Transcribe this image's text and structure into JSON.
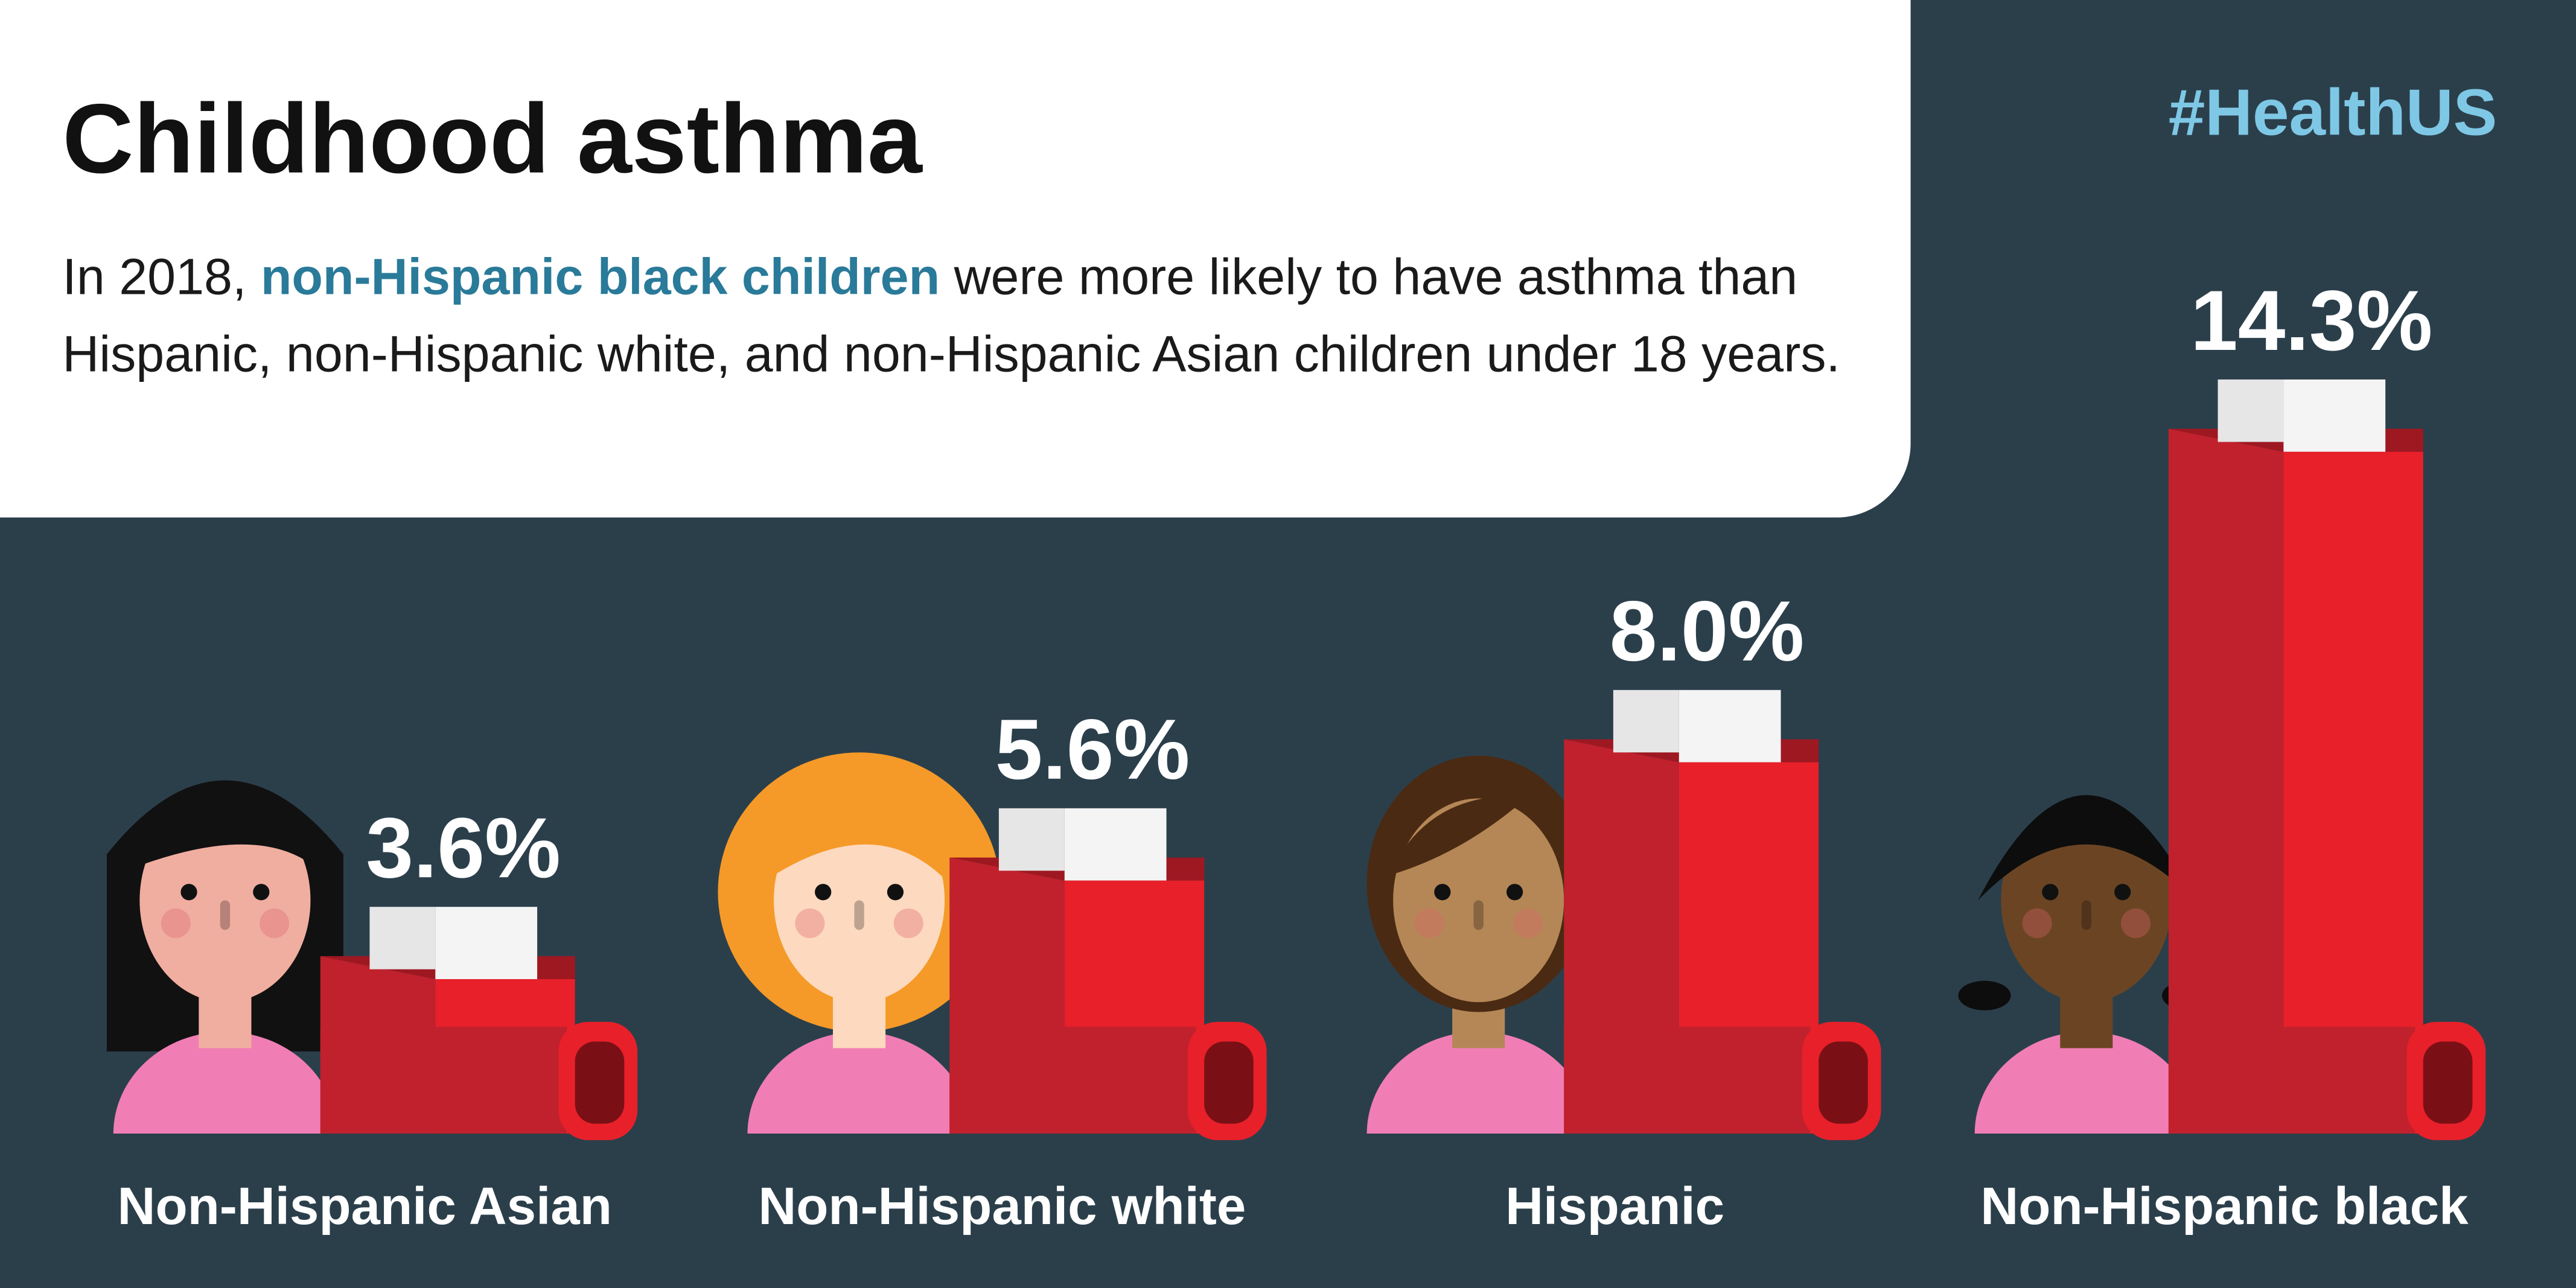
{
  "chart_data": {
    "type": "bar",
    "title": "Childhood asthma",
    "hashtag": "#HealthUS",
    "subtitle": [
      "In 2018, ",
      "non-Hispanic black children",
      " were more likely to have asthma than Hispanic, non-Hispanic white, and non-Hispanic Asian children under 18 years."
    ],
    "categories": [
      "Non-Hispanic Asian",
      "Non-Hispanic white",
      "Hispanic",
      "Non-Hispanic black"
    ],
    "values": [
      3.6,
      5.6,
      8.0,
      14.3
    ],
    "value_labels": [
      "3.6%",
      "5.6%",
      "8.0%",
      "14.3%"
    ],
    "color": "#e8202a"
  }
}
